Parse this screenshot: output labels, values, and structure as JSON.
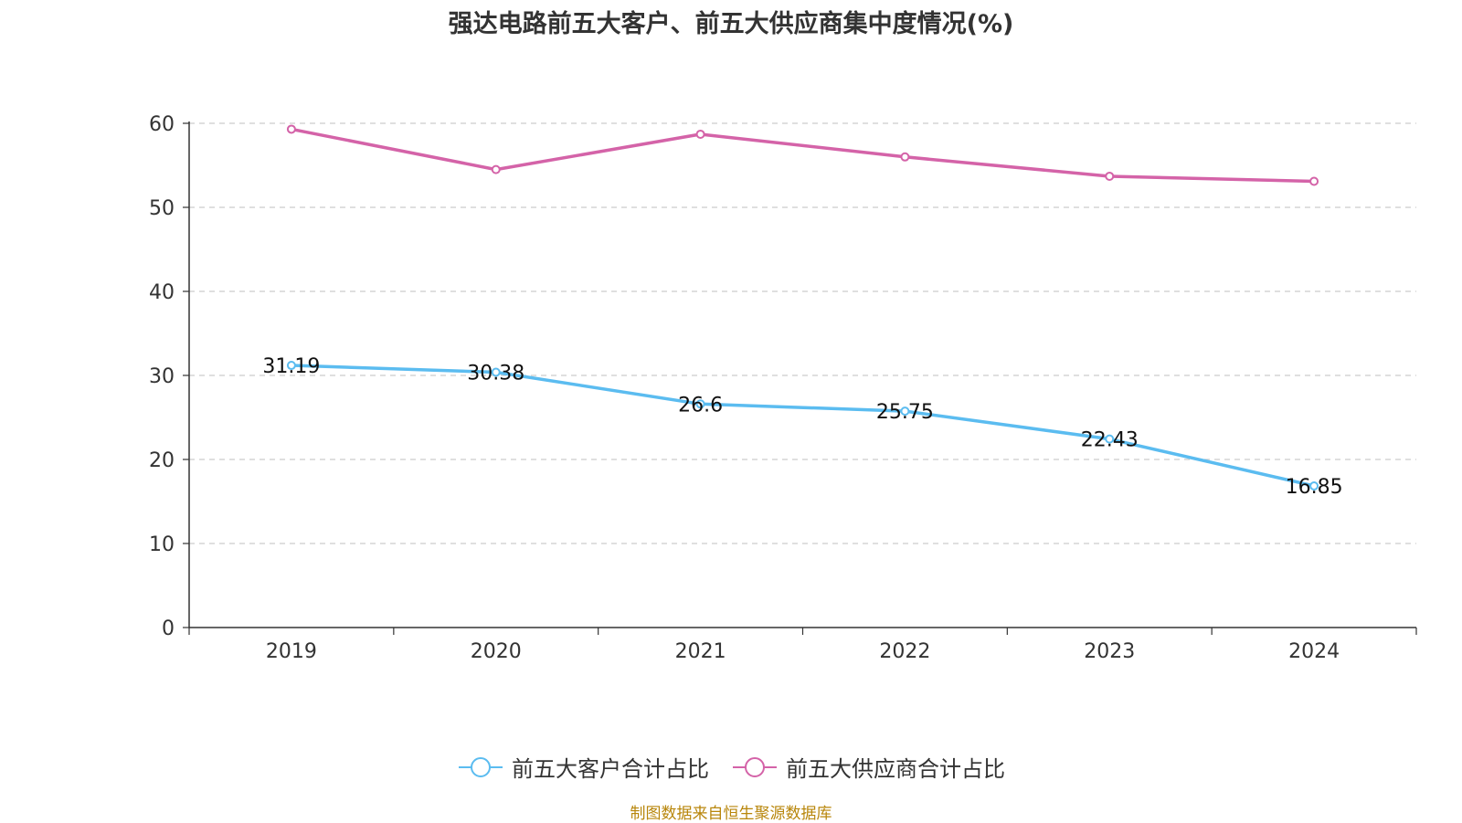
{
  "chart_data": {
    "type": "line",
    "title": "强达电路前五大客户、前五大供应商集中度情况(%)",
    "categories": [
      "2019",
      "2020",
      "2021",
      "2022",
      "2023",
      "2024"
    ],
    "series": [
      {
        "name": "前五大客户合计占比",
        "color": "#5bbcf0",
        "values": [
          31.19,
          30.38,
          26.6,
          25.75,
          22.43,
          16.85
        ],
        "labels": [
          "31.19",
          "30.38",
          "26.6",
          "25.75",
          "22.43",
          "16.85"
        ],
        "show_labels": true
      },
      {
        "name": "前五大供应商合计占比",
        "color": "#d463a8",
        "values": [
          59.3,
          54.5,
          58.7,
          56.0,
          53.7,
          53.1
        ],
        "show_labels": false
      }
    ],
    "ylim": [
      0,
      60
    ],
    "yticks": [
      0,
      10,
      20,
      30,
      40,
      50,
      60
    ],
    "grid": true,
    "legend_position": "bottom"
  },
  "legend": {
    "customers": "前五大客户合计占比",
    "suppliers": "前五大供应商合计占比"
  },
  "source": "制图数据来自恒生聚源数据库"
}
